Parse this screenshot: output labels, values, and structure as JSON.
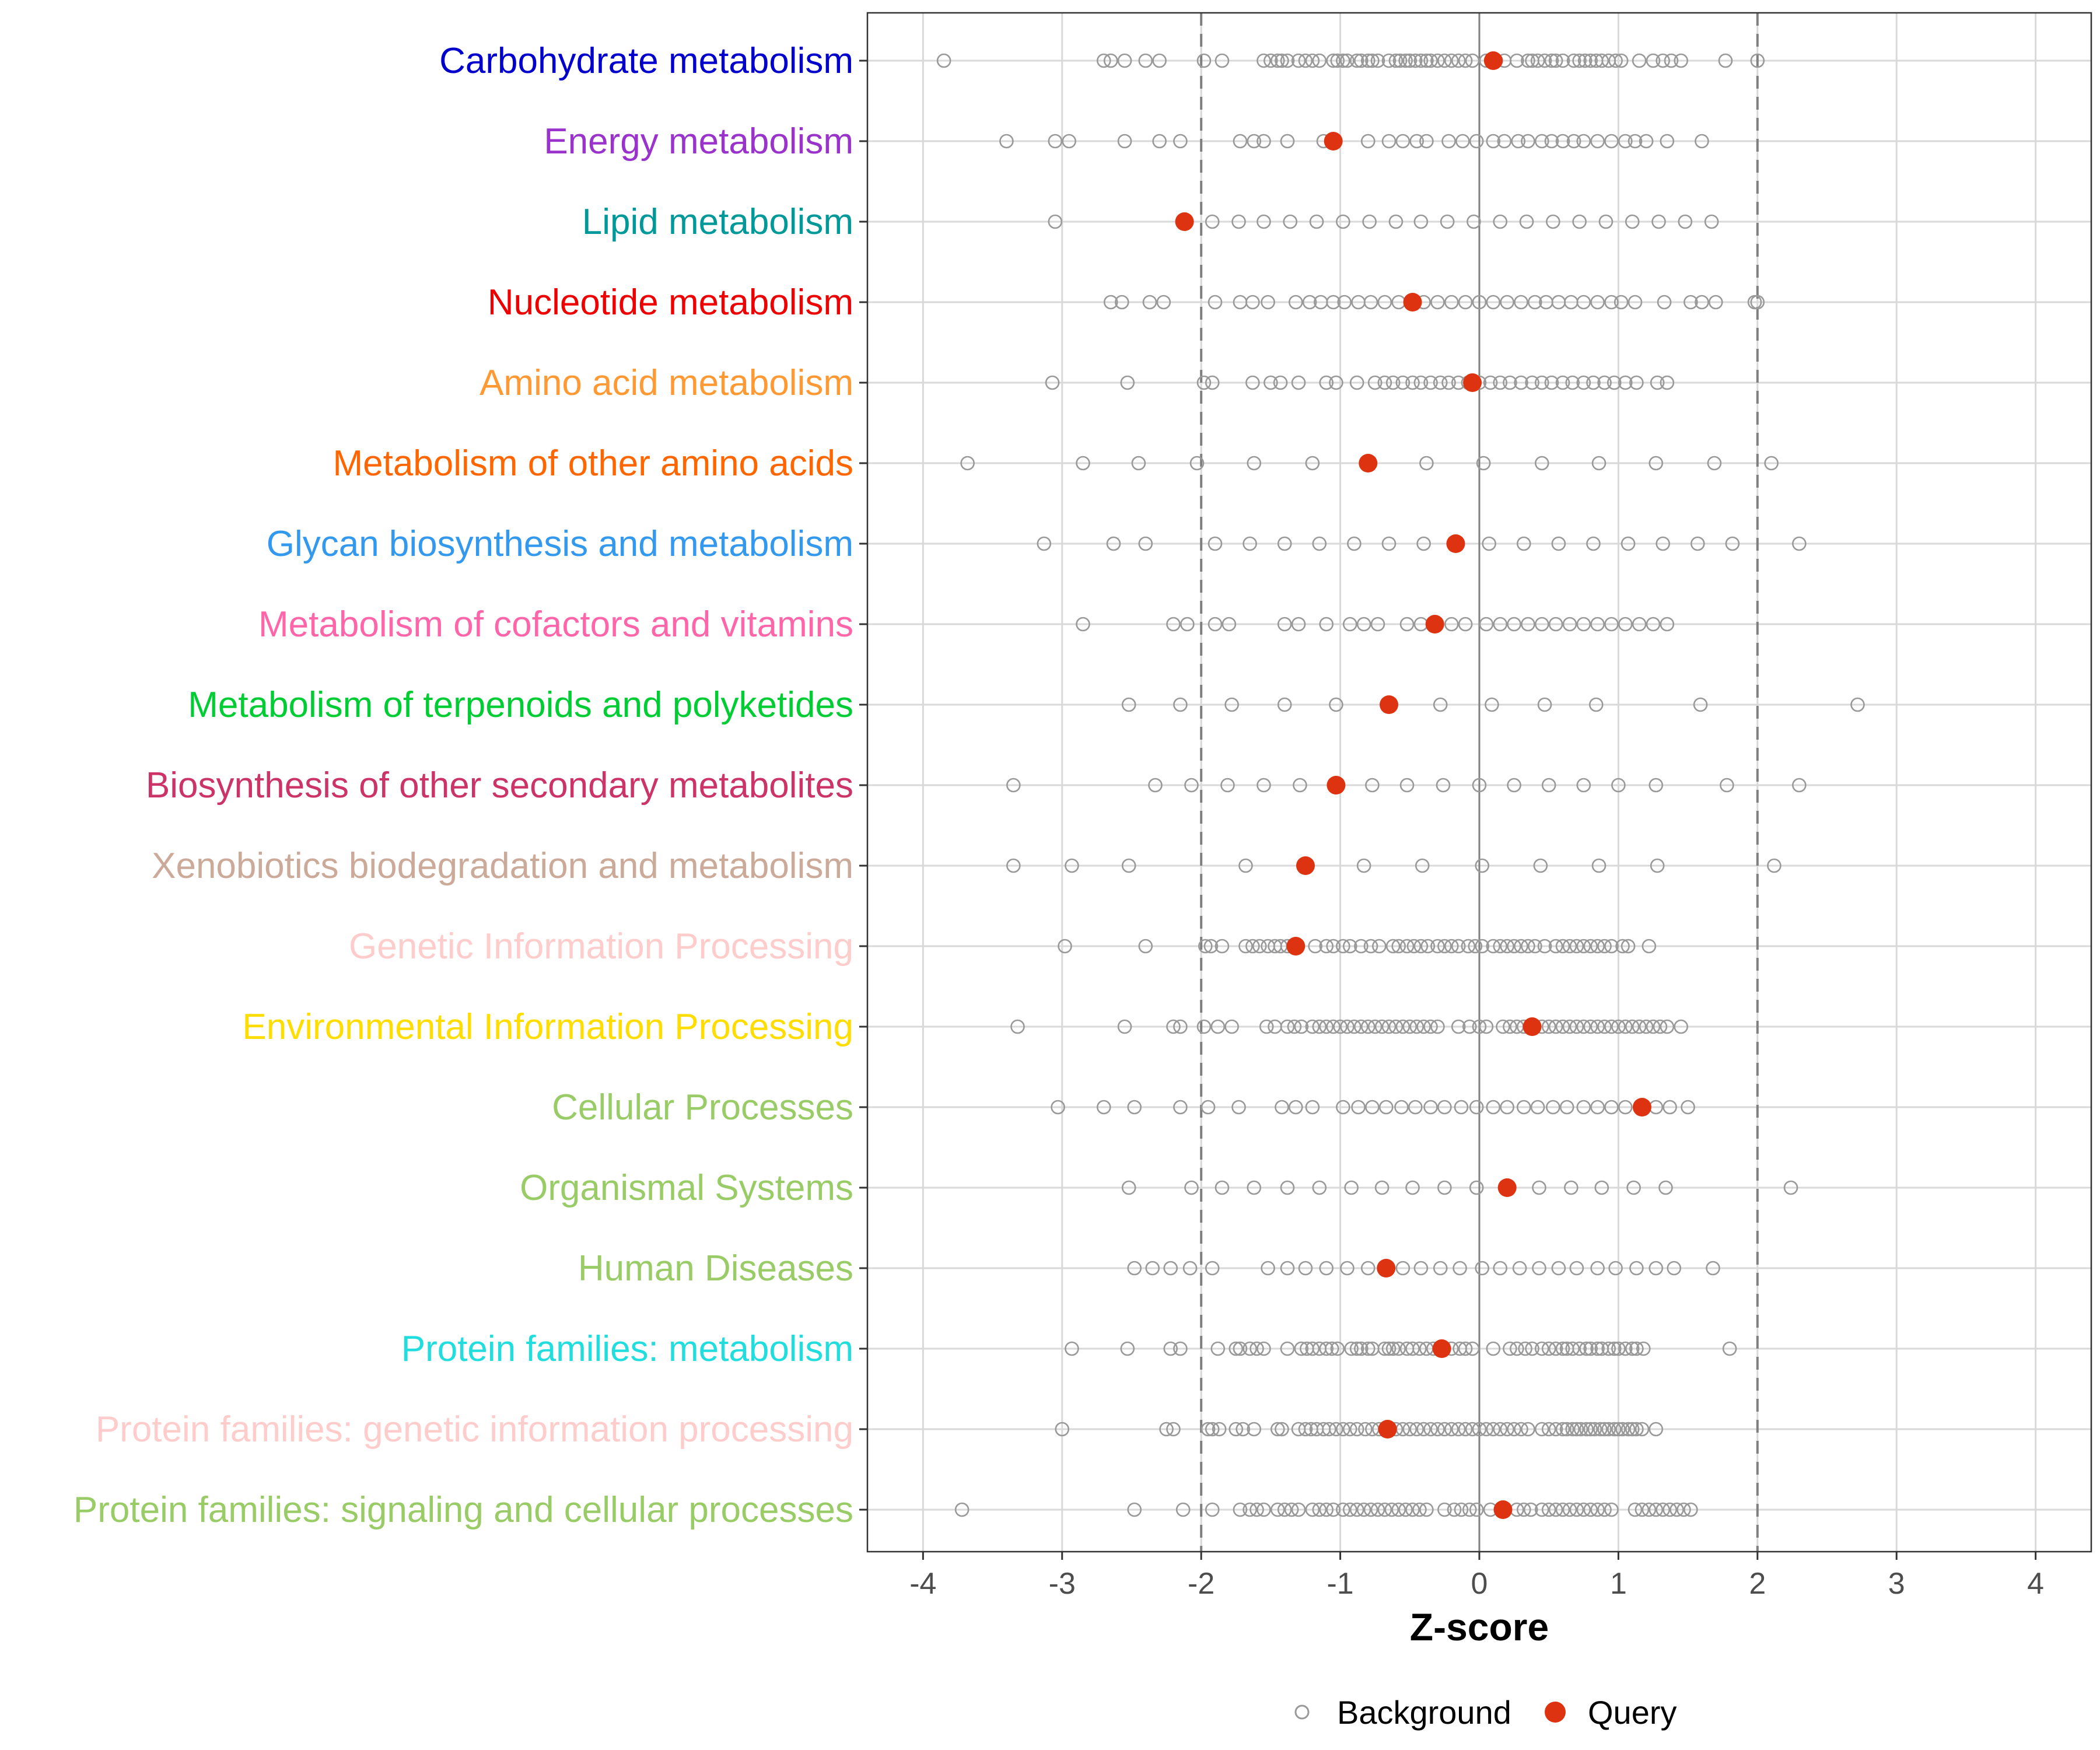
{
  "chart_data": {
    "type": "scatter",
    "xlabel": "Z-score",
    "xlim": [
      -4.4,
      4.4
    ],
    "x_ticks": [
      -4,
      -3,
      -2,
      -1,
      0,
      1,
      2,
      3,
      4
    ],
    "x_tick_labels": [
      "-4",
      "-3",
      "-2",
      "-1",
      "0",
      "1",
      "2",
      "3",
      "4"
    ],
    "reference_lines": {
      "solid": [
        0
      ],
      "dashed": [
        -2,
        2
      ]
    },
    "legend": {
      "position": "bottom",
      "background_label": "Background",
      "query_label": "Query",
      "background_color": "#999999",
      "query_color": "#DD3311"
    },
    "categories": [
      {
        "name": "Carbohydrate metabolism",
        "color": "#0000CC",
        "query": 0.1,
        "background": [
          -3.85,
          -2.7,
          -2.65,
          -2.55,
          -2.4,
          -2.3,
          -1.98,
          -1.85,
          -1.55,
          -1.5,
          -1.45,
          -1.42,
          -1.38,
          -1.3,
          -1.25,
          -1.2,
          -1.15,
          -1.05,
          -1.02,
          -0.98,
          -0.95,
          -0.88,
          -0.85,
          -0.8,
          -0.77,
          -0.73,
          -0.65,
          -0.6,
          -0.57,
          -0.53,
          -0.5,
          -0.46,
          -0.42,
          -0.38,
          -0.35,
          -0.3,
          -0.25,
          -0.2,
          -0.15,
          -0.1,
          -0.05,
          0.05,
          0.12,
          0.18,
          0.27,
          0.35,
          0.38,
          0.42,
          0.47,
          0.52,
          0.55,
          0.6,
          0.68,
          0.72,
          0.76,
          0.8,
          0.84,
          0.88,
          0.93,
          0.98,
          1.02,
          1.15,
          1.25,
          1.32,
          1.38,
          1.45,
          1.77,
          2.0
        ]
      },
      {
        "name": "Energy metabolism",
        "color": "#9933CC",
        "query": -1.05,
        "background": [
          -3.4,
          -3.05,
          -2.95,
          -2.55,
          -2.3,
          -2.15,
          -1.72,
          -1.62,
          -1.55,
          -1.38,
          -1.12,
          -0.8,
          -0.65,
          -0.55,
          -0.45,
          -0.38,
          -0.22,
          -0.12,
          -0.02,
          0.1,
          0.18,
          0.28,
          0.35,
          0.45,
          0.52,
          0.6,
          0.68,
          0.75,
          0.85,
          0.95,
          1.05,
          1.12,
          1.2,
          1.35,
          1.6
        ]
      },
      {
        "name": "Lipid metabolism",
        "color": "#009999",
        "query": -2.12,
        "background": [
          -3.05,
          -1.92,
          -1.73,
          -1.55,
          -1.36,
          -1.17,
          -0.98,
          -0.79,
          -0.6,
          -0.42,
          -0.23,
          -0.04,
          0.15,
          0.34,
          0.53,
          0.72,
          0.91,
          1.1,
          1.29,
          1.48,
          1.67
        ]
      },
      {
        "name": "Nucleotide metabolism",
        "color": "#EE0000",
        "query": -0.48,
        "background": [
          -2.65,
          -2.57,
          -2.37,
          -2.27,
          -1.9,
          -1.72,
          -1.63,
          -1.52,
          -1.32,
          -1.22,
          -1.14,
          -1.05,
          -0.97,
          -0.87,
          -0.78,
          -0.68,
          -0.58,
          -0.4,
          -0.3,
          -0.2,
          -0.1,
          0.0,
          0.1,
          0.2,
          0.3,
          0.4,
          0.48,
          0.57,
          0.66,
          0.75,
          0.85,
          0.95,
          1.02,
          1.12,
          1.33,
          1.52,
          1.6,
          1.7,
          1.98,
          2.0
        ]
      },
      {
        "name": "Amino acid metabolism",
        "color": "#FF9933",
        "query": -0.05,
        "background": [
          -3.07,
          -2.53,
          -1.98,
          -1.92,
          -1.63,
          -1.5,
          -1.43,
          -1.3,
          -1.1,
          -1.03,
          -0.88,
          -0.75,
          -0.68,
          -0.62,
          -0.55,
          -0.48,
          -0.42,
          -0.35,
          -0.28,
          -0.22,
          -0.15,
          -0.08,
          0.0,
          0.08,
          0.15,
          0.22,
          0.3,
          0.38,
          0.45,
          0.52,
          0.6,
          0.67,
          0.75,
          0.82,
          0.9,
          0.97,
          1.05,
          1.13,
          1.28,
          1.35
        ]
      },
      {
        "name": "Metabolism of other amino acids",
        "color": "#FF6600",
        "query": -0.8,
        "background": [
          -3.68,
          -2.85,
          -2.45,
          -2.03,
          -1.62,
          -1.2,
          -0.38,
          0.03,
          0.45,
          0.86,
          1.27,
          1.69,
          2.1
        ]
      },
      {
        "name": "Glycan biosynthesis and metabolism",
        "color": "#3399EE",
        "query": -0.17,
        "background": [
          -3.13,
          -2.63,
          -2.4,
          -1.9,
          -1.65,
          -1.4,
          -1.15,
          -0.9,
          -0.65,
          -0.4,
          0.07,
          0.32,
          0.57,
          0.82,
          1.07,
          1.32,
          1.57,
          1.82,
          2.3
        ]
      },
      {
        "name": "Metabolism of cofactors and vitamins",
        "color": "#FF66AA",
        "query": -0.32,
        "background": [
          -2.85,
          -2.2,
          -2.1,
          -1.9,
          -1.8,
          -1.4,
          -1.3,
          -1.1,
          -0.93,
          -0.83,
          -0.73,
          -0.52,
          -0.42,
          -0.2,
          -0.1,
          0.05,
          0.15,
          0.25,
          0.35,
          0.45,
          0.55,
          0.65,
          0.75,
          0.85,
          0.95,
          1.05,
          1.15,
          1.25,
          1.35
        ]
      },
      {
        "name": "Metabolism of terpenoids and polyketides",
        "color": "#00CC33",
        "query": -0.65,
        "background": [
          -2.52,
          -2.15,
          -1.78,
          -1.4,
          -1.03,
          -0.28,
          0.09,
          0.47,
          0.84,
          1.59,
          2.72
        ]
      },
      {
        "name": "Biosynthesis of other secondary metabolites",
        "color": "#CC3366",
        "query": -1.03,
        "background": [
          -3.35,
          -2.33,
          -2.07,
          -1.81,
          -1.55,
          -1.29,
          -0.77,
          -0.52,
          -0.26,
          0.0,
          0.25,
          0.5,
          0.75,
          1.0,
          1.27,
          1.78,
          2.3
        ]
      },
      {
        "name": "Xenobiotics biodegradation and metabolism",
        "color": "#CCAA99",
        "query": -1.25,
        "background": [
          -3.35,
          -2.93,
          -2.52,
          -1.68,
          -0.83,
          -0.41,
          0.02,
          0.44,
          0.86,
          1.28,
          2.12
        ]
      },
      {
        "name": "Genetic Information Processing",
        "color": "#FFCCCC",
        "query": -1.32,
        "background": [
          -2.98,
          -2.4,
          -1.97,
          -1.93,
          -1.85,
          -1.68,
          -1.63,
          -1.58,
          -1.52,
          -1.47,
          -1.43,
          -1.38,
          -1.18,
          -1.1,
          -1.05,
          -0.98,
          -0.93,
          -0.85,
          -0.78,
          -0.72,
          -0.62,
          -0.58,
          -0.52,
          -0.47,
          -0.42,
          -0.37,
          -0.3,
          -0.25,
          -0.2,
          -0.15,
          -0.08,
          -0.03,
          0.02,
          0.1,
          0.15,
          0.2,
          0.25,
          0.3,
          0.35,
          0.4,
          0.47,
          0.55,
          0.6,
          0.65,
          0.7,
          0.75,
          0.8,
          0.85,
          0.9,
          0.95,
          1.03,
          1.07,
          1.22
        ]
      },
      {
        "name": "Environmental Information Processing",
        "color": "#FFDD00",
        "query": 0.38,
        "background": [
          -3.32,
          -2.55,
          -2.2,
          -2.15,
          -1.98,
          -1.88,
          -1.78,
          -1.53,
          -1.47,
          -1.38,
          -1.33,
          -1.28,
          -1.2,
          -1.15,
          -1.1,
          -1.05,
          -1.0,
          -0.95,
          -0.9,
          -0.85,
          -0.8,
          -0.75,
          -0.7,
          -0.65,
          -0.6,
          -0.55,
          -0.5,
          -0.45,
          -0.4,
          -0.35,
          -0.3,
          -0.15,
          -0.07,
          0.0,
          0.05,
          0.17,
          0.22,
          0.27,
          0.32,
          0.45,
          0.5,
          0.55,
          0.6,
          0.65,
          0.7,
          0.75,
          0.8,
          0.85,
          0.9,
          0.95,
          1.0,
          1.05,
          1.1,
          1.15,
          1.2,
          1.25,
          1.3,
          1.35,
          1.45
        ]
      },
      {
        "name": "Cellular Processes",
        "color": "#99CC66",
        "query": 1.17,
        "background": [
          -3.03,
          -2.7,
          -2.48,
          -2.15,
          -1.95,
          -1.73,
          -1.42,
          -1.32,
          -1.2,
          -0.98,
          -0.87,
          -0.77,
          -0.67,
          -0.56,
          -0.46,
          -0.35,
          -0.25,
          -0.13,
          -0.02,
          0.1,
          0.2,
          0.32,
          0.42,
          0.53,
          0.63,
          0.75,
          0.85,
          0.95,
          1.05,
          1.27,
          1.37,
          1.5
        ]
      },
      {
        "name": "Organismal Systems",
        "color": "#99CC66",
        "query": 0.2,
        "background": [
          -2.52,
          -2.07,
          -1.85,
          -1.62,
          -1.38,
          -1.15,
          -0.92,
          -0.7,
          -0.48,
          -0.25,
          -0.02,
          0.43,
          0.66,
          0.88,
          1.11,
          1.34,
          2.24
        ]
      },
      {
        "name": "Human Diseases",
        "color": "#99CC66",
        "query": -0.67,
        "background": [
          -2.48,
          -2.35,
          -2.22,
          -2.08,
          -1.92,
          -1.52,
          -1.38,
          -1.25,
          -1.1,
          -0.95,
          -0.8,
          -0.55,
          -0.42,
          -0.28,
          -0.14,
          0.02,
          0.15,
          0.29,
          0.43,
          0.57,
          0.7,
          0.85,
          0.98,
          1.13,
          1.27,
          1.4,
          1.68
        ]
      },
      {
        "name": "Protein families: metabolism",
        "color": "#22DDDD",
        "query": -0.27,
        "background": [
          -2.93,
          -2.53,
          -2.22,
          -2.15,
          -1.88,
          -1.75,
          -1.72,
          -1.65,
          -1.6,
          -1.55,
          -1.38,
          -1.28,
          -1.24,
          -1.2,
          -1.15,
          -1.1,
          -1.06,
          -1.02,
          -0.92,
          -0.88,
          -0.85,
          -0.8,
          -0.77,
          -0.68,
          -0.65,
          -0.62,
          -0.58,
          -0.52,
          -0.48,
          -0.43,
          -0.38,
          -0.33,
          -0.2,
          -0.14,
          -0.1,
          -0.05,
          0.1,
          0.22,
          0.27,
          0.33,
          0.38,
          0.45,
          0.5,
          0.55,
          0.6,
          0.63,
          0.67,
          0.72,
          0.77,
          0.8,
          0.85,
          0.88,
          0.93,
          0.97,
          1.0,
          1.05,
          1.1,
          1.13,
          1.18,
          1.8
        ]
      },
      {
        "name": "Protein families: genetic information processing",
        "color": "#FFCCCC",
        "query": -0.66,
        "background": [
          -3.0,
          -2.25,
          -2.2,
          -1.95,
          -1.92,
          -1.87,
          -1.75,
          -1.7,
          -1.62,
          -1.45,
          -1.42,
          -1.3,
          -1.25,
          -1.21,
          -1.17,
          -1.12,
          -1.08,
          -1.03,
          -0.98,
          -0.93,
          -0.88,
          -0.82,
          -0.77,
          -0.72,
          -0.6,
          -0.55,
          -0.5,
          -0.45,
          -0.4,
          -0.35,
          -0.3,
          -0.25,
          -0.2,
          -0.15,
          -0.1,
          -0.05,
          0.0,
          0.05,
          0.1,
          0.15,
          0.2,
          0.25,
          0.3,
          0.35,
          0.45,
          0.5,
          0.55,
          0.6,
          0.63,
          0.67,
          0.7,
          0.73,
          0.77,
          0.8,
          0.83,
          0.87,
          0.9,
          0.93,
          0.97,
          1.0,
          1.03,
          1.07,
          1.1,
          1.13,
          1.17,
          1.27
        ]
      },
      {
        "name": "Protein families: signaling and cellular processes",
        "color": "#99CC66",
        "query": 0.17,
        "background": [
          -3.72,
          -2.48,
          -2.13,
          -1.92,
          -1.72,
          -1.65,
          -1.6,
          -1.55,
          -1.45,
          -1.4,
          -1.35,
          -1.3,
          -1.2,
          -1.15,
          -1.1,
          -1.05,
          -0.98,
          -0.93,
          -0.88,
          -0.83,
          -0.78,
          -0.73,
          -0.68,
          -0.63,
          -0.58,
          -0.53,
          -0.48,
          -0.43,
          -0.38,
          -0.25,
          -0.18,
          -0.13,
          -0.07,
          -0.02,
          0.08,
          0.27,
          0.32,
          0.37,
          0.45,
          0.5,
          0.55,
          0.6,
          0.65,
          0.7,
          0.75,
          0.8,
          0.85,
          0.9,
          0.95,
          1.12,
          1.17,
          1.22,
          1.27,
          1.32,
          1.37,
          1.42,
          1.47,
          1.52
        ]
      }
    ]
  }
}
